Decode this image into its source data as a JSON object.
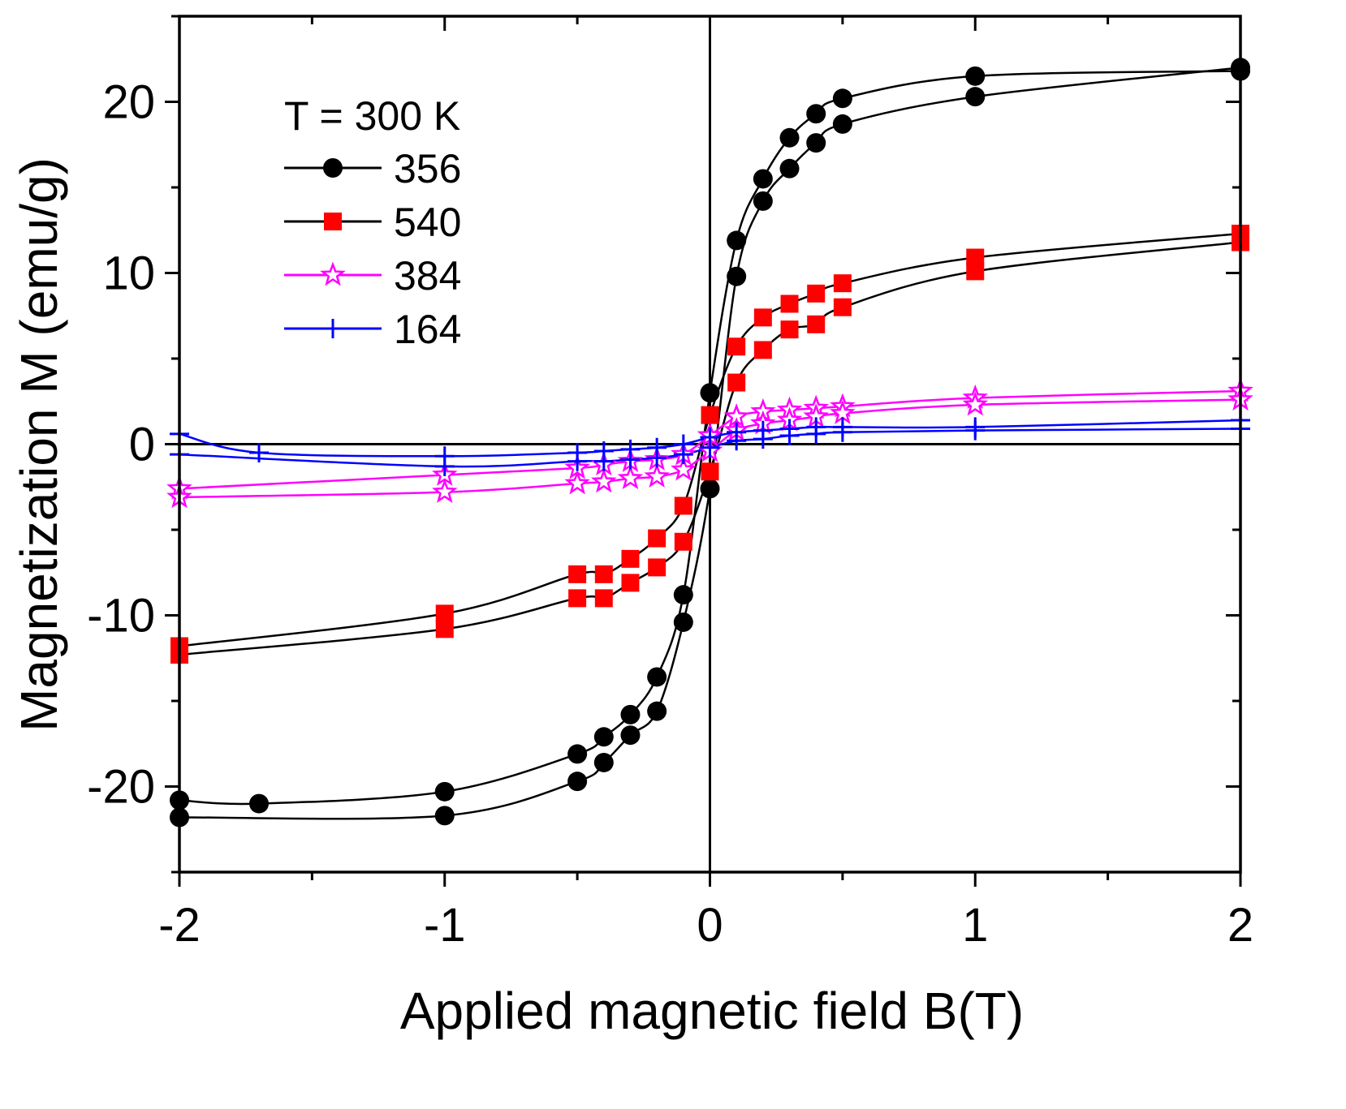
{
  "chart_data": {
    "type": "line",
    "xlabel": "Applied magnetic field B(T)",
    "ylabel": "Magnetization M (emu/g)",
    "xlim": [
      -2,
      2
    ],
    "ylim": [
      -25,
      25
    ],
    "xticks": [
      -2,
      -1,
      0,
      1,
      2
    ],
    "xtick_labels": [
      "-2",
      "-1",
      "0",
      "1",
      "2"
    ],
    "yticks": [
      -20,
      -10,
      0,
      10,
      20
    ],
    "ytick_labels": [
      "-20",
      "-10",
      "0",
      "10",
      "20"
    ],
    "annotation": "T = 300 K",
    "legend_position": "top-left",
    "series": [
      {
        "name": "356",
        "color": "#000000",
        "line_color": "#000000",
        "marker": "circle",
        "upper": [
          [
            -2,
            -20.8
          ],
          [
            -1.7,
            -21.0
          ],
          [
            -1,
            -20.3
          ],
          [
            -0.5,
            -18.1
          ],
          [
            -0.4,
            -17.1
          ],
          [
            -0.3,
            -15.8
          ],
          [
            -0.2,
            -13.6
          ],
          [
            -0.1,
            -8.8
          ],
          [
            0,
            3.0
          ],
          [
            0.1,
            11.9
          ],
          [
            0.2,
            15.5
          ],
          [
            0.3,
            17.9
          ],
          [
            0.4,
            19.3
          ],
          [
            0.5,
            20.2
          ],
          [
            1,
            21.5
          ],
          [
            2,
            21.8
          ]
        ],
        "lower": [
          [
            -2,
            -21.8
          ],
          [
            -1,
            -21.7
          ],
          [
            -0.5,
            -19.7
          ],
          [
            -0.4,
            -18.6
          ],
          [
            -0.3,
            -17.0
          ],
          [
            -0.2,
            -15.6
          ],
          [
            -0.1,
            -10.4
          ],
          [
            0,
            -2.6
          ],
          [
            0.1,
            9.8
          ],
          [
            0.2,
            14.2
          ],
          [
            0.3,
            16.1
          ],
          [
            0.4,
            17.6
          ],
          [
            0.5,
            18.7
          ],
          [
            1,
            20.3
          ],
          [
            2,
            22.0
          ]
        ]
      },
      {
        "name": "540",
        "color": "#ff0000",
        "line_color": "#000000",
        "marker": "square",
        "upper": [
          [
            -2,
            -11.8
          ],
          [
            -1,
            -9.9
          ],
          [
            -0.5,
            -7.6
          ],
          [
            -0.4,
            -7.6
          ],
          [
            -0.3,
            -6.7
          ],
          [
            -0.2,
            -5.5
          ],
          [
            -0.1,
            -3.6
          ],
          [
            0,
            1.7
          ],
          [
            0.1,
            5.7
          ],
          [
            0.2,
            7.4
          ],
          [
            0.3,
            8.2
          ],
          [
            0.4,
            8.8
          ],
          [
            0.5,
            9.4
          ],
          [
            1,
            10.9
          ],
          [
            2,
            12.3
          ]
        ],
        "lower": [
          [
            -2,
            -12.3
          ],
          [
            -1,
            -10.8
          ],
          [
            -0.5,
            -9.0
          ],
          [
            -0.4,
            -9.0
          ],
          [
            -0.3,
            -8.1
          ],
          [
            -0.2,
            -7.2
          ],
          [
            -0.1,
            -5.7
          ],
          [
            0,
            -1.6
          ],
          [
            0.1,
            3.6
          ],
          [
            0.2,
            5.5
          ],
          [
            0.3,
            6.7
          ],
          [
            0.4,
            7.0
          ],
          [
            0.5,
            8.0
          ],
          [
            1,
            10.1
          ],
          [
            2,
            11.8
          ]
        ]
      },
      {
        "name": "384",
        "color": "#ff00ff",
        "line_color": "#ff00ff",
        "marker": "star",
        "upper": [
          [
            -2,
            -2.6
          ],
          [
            -1,
            -1.8
          ],
          [
            -0.5,
            -1.4
          ],
          [
            -0.4,
            -1.2
          ],
          [
            -0.3,
            -1.0
          ],
          [
            -0.2,
            -0.9
          ],
          [
            -0.1,
            -0.6
          ],
          [
            0,
            0.5
          ],
          [
            0.1,
            1.6
          ],
          [
            0.2,
            1.9
          ],
          [
            0.3,
            2.0
          ],
          [
            0.4,
            2.1
          ],
          [
            0.5,
            2.2
          ],
          [
            1,
            2.7
          ],
          [
            2,
            3.1
          ]
        ],
        "lower": [
          [
            -2,
            -3.1
          ],
          [
            -1,
            -2.8
          ],
          [
            -0.5,
            -2.3
          ],
          [
            -0.4,
            -2.2
          ],
          [
            -0.3,
            -2.0
          ],
          [
            -0.2,
            -1.9
          ],
          [
            -0.1,
            -1.5
          ],
          [
            0,
            -0.4
          ],
          [
            0.1,
            0.8
          ],
          [
            0.2,
            1.2
          ],
          [
            0.3,
            1.4
          ],
          [
            0.4,
            1.6
          ],
          [
            0.5,
            1.8
          ],
          [
            1,
            2.3
          ],
          [
            2,
            2.6
          ]
        ]
      },
      {
        "name": "164",
        "color": "#0000ff",
        "line_color": "#0000ff",
        "marker": "plus",
        "upper": [
          [
            -2,
            0.6
          ],
          [
            -1.7,
            -0.5
          ],
          [
            -1,
            -0.7
          ],
          [
            -0.5,
            -0.5
          ],
          [
            -0.4,
            -0.4
          ],
          [
            -0.3,
            -0.3
          ],
          [
            -0.2,
            -0.2
          ],
          [
            -0.1,
            0.0
          ],
          [
            0,
            0.4
          ],
          [
            0.1,
            0.7
          ],
          [
            0.2,
            0.8
          ],
          [
            0.3,
            0.9
          ],
          [
            0.4,
            1.0
          ],
          [
            0.5,
            1.0
          ],
          [
            1,
            1.0
          ],
          [
            2,
            1.4
          ]
        ],
        "lower": [
          [
            -2,
            -0.6
          ],
          [
            -1,
            -1.3
          ],
          [
            -0.5,
            -1.0
          ],
          [
            -0.4,
            -1.0
          ],
          [
            -0.3,
            -0.9
          ],
          [
            -0.2,
            -0.8
          ],
          [
            -0.1,
            -0.6
          ],
          [
            0,
            -0.2
          ],
          [
            0.1,
            0.2
          ],
          [
            0.2,
            0.3
          ],
          [
            0.3,
            0.5
          ],
          [
            0.4,
            0.6
          ],
          [
            0.5,
            0.7
          ],
          [
            1,
            0.8
          ],
          [
            2,
            0.9
          ]
        ]
      }
    ]
  }
}
